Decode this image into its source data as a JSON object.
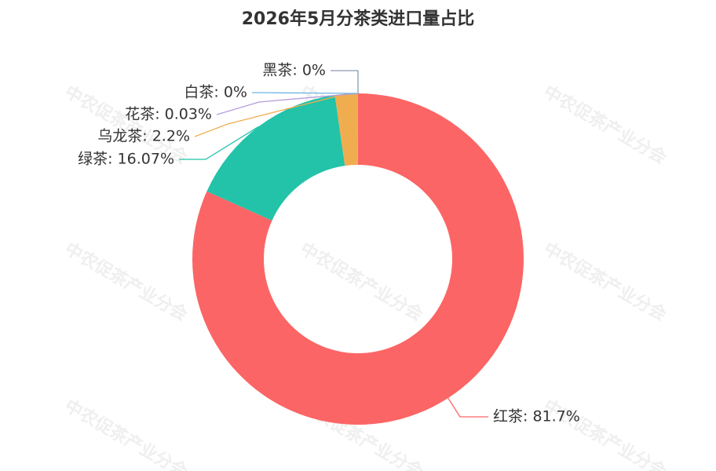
{
  "chart_data": {
    "type": "donut",
    "title": "2026年5月分茶类进口量占比",
    "watermark": "中农促茶产业分会",
    "values": [
      81.7,
      16.07,
      2.2,
      0.03,
      0,
      0
    ],
    "value_labels": [
      "红茶: 81.7%",
      "绿茶: 16.07%",
      "乌龙茶: 2.2%",
      "花茶: 0.03%",
      "白茶: 0%",
      "黑茶: 0%"
    ],
    "colors": [
      "#fc6565",
      "#22c3a9",
      "#f0ad50",
      "#b59ddc",
      "#6fb5e3",
      "#8d9bb3"
    ]
  }
}
